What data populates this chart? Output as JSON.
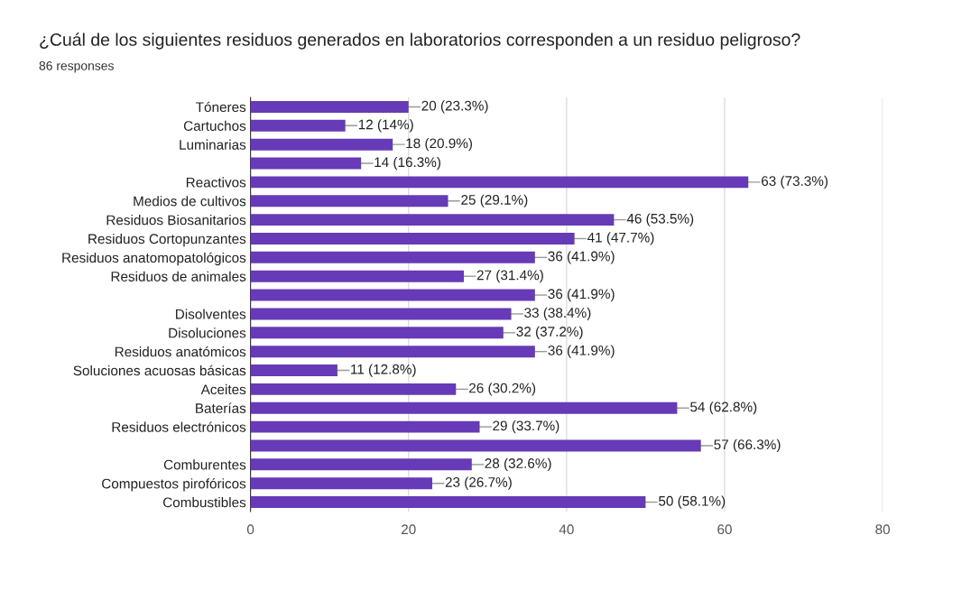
{
  "chart_data": {
    "type": "bar",
    "orientation": "horizontal",
    "title": "¿Cuál de los siguientes residuos generados en laboratorios corresponden a un residuo peligroso?",
    "subtitle": "86 responses",
    "categories": [
      "Tóneres",
      "Cartuchos",
      "Luminarias",
      null,
      "Reactivos",
      "Medios de cultivos",
      "Residuos Biosanitarios",
      "Residuos Cortopunzantes",
      "Residuos anatomopatológicos",
      "Residuos de animales",
      null,
      "Disolventes",
      "Disoluciones",
      "Residuos anatómicos",
      "Soluciones acuosas básicas",
      "Aceites",
      "Baterías",
      "Residuos electrónicos",
      null,
      "Comburentes",
      "Compuestos pirofóricos",
      "Combustibles"
    ],
    "values": [
      20,
      12,
      18,
      14,
      63,
      25,
      46,
      41,
      36,
      27,
      36,
      33,
      32,
      36,
      11,
      26,
      54,
      29,
      57,
      28,
      23,
      50
    ],
    "value_labels": [
      "20 (23.3%)",
      "12 (14%)",
      "18 (20.9%)",
      "14 (16.3%)",
      "63 (73.3%)",
      "25 (29.1%)",
      "46 (53.5%)",
      "41 (47.7%)",
      "36 (41.9%)",
      "27 (31.4%)",
      "36 (41.9%)",
      "33 (38.4%)",
      "32 (37.2%)",
      "36 (41.9%)",
      "11 (12.8%)",
      "26 (30.2%)",
      "54 (62.8%)",
      "29 (33.7%)",
      "57 (66.3%)",
      "28 (32.6%)",
      "23 (26.7%)",
      "50 (58.1%)"
    ],
    "color": "#673ab7",
    "xlim": [
      0,
      80
    ],
    "xticks": [
      0,
      20,
      40,
      60,
      80
    ],
    "grid": "x",
    "legend": false
  }
}
